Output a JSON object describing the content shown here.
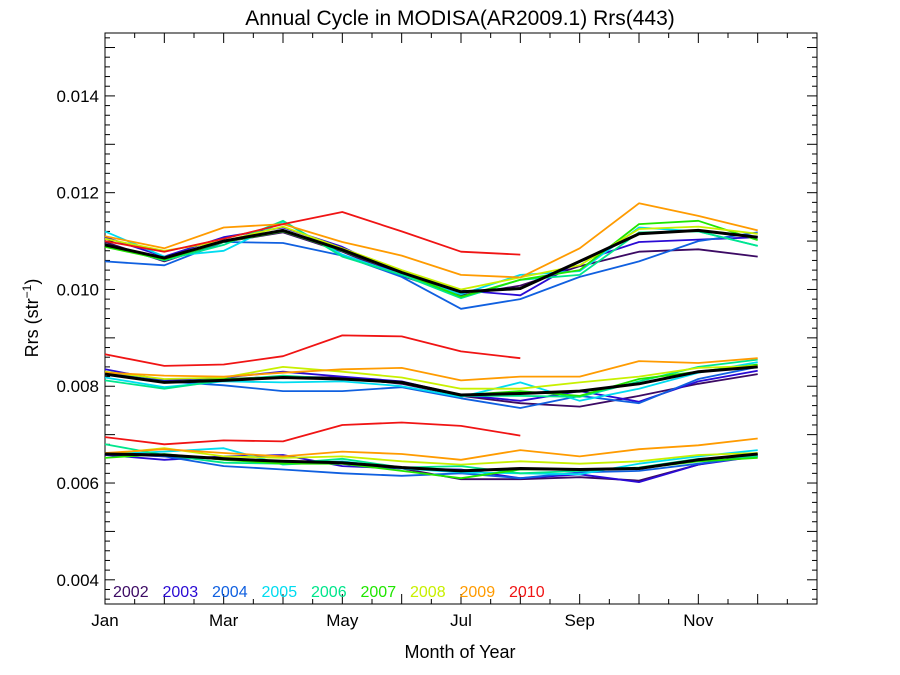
{
  "chart_data": {
    "type": "line",
    "title": "Annual Cycle in MODISA(AR2009.1) Rrs(443)",
    "xlabel": "Month of Year",
    "ylabel_main": "Rrs (str",
    "ylabel_sup": "−1",
    "ylabel_close": ")",
    "xlim": [
      1,
      13
    ],
    "ylim": [
      0.0035,
      0.0153
    ],
    "xticks": [
      {
        "value": 1,
        "label": "Jan"
      },
      {
        "value": 3,
        "label": "Mar"
      },
      {
        "value": 5,
        "label": "May"
      },
      {
        "value": 7,
        "label": "Jul"
      },
      {
        "value": 9,
        "label": "Sep"
      },
      {
        "value": 11,
        "label": "Nov"
      }
    ],
    "yticks": [
      {
        "value": 0.004,
        "label": "0.004"
      },
      {
        "value": 0.006,
        "label": "0.006"
      },
      {
        "value": 0.008,
        "label": "0.008"
      },
      {
        "value": 0.01,
        "label": "0.010"
      },
      {
        "value": 0.012,
        "label": "0.012"
      },
      {
        "value": 0.014,
        "label": "0.014"
      }
    ],
    "x": [
      1,
      2,
      3,
      4,
      5,
      6,
      7,
      8,
      9,
      10,
      11,
      12
    ],
    "legend_placement": "bottom-left",
    "series": [
      {
        "name": "2002",
        "color": "#3c0a64",
        "groups": [
          [
            0.01098,
            0.01058,
            0.01098,
            0.01118,
            0.01078,
            0.01028,
            0.00988,
            0.01008,
            0.01048,
            0.01078,
            0.01083,
            0.01068
          ],
          [
            0.00828,
            0.00808,
            0.00815,
            0.0082,
            0.00818,
            0.00805,
            0.0078,
            0.00765,
            0.00758,
            0.0078,
            0.00805,
            0.00825
          ],
          [
            0.0066,
            0.00655,
            0.0065,
            0.00645,
            0.0064,
            0.0063,
            0.00608,
            0.00608,
            0.00612,
            0.00605,
            0.00638,
            0.0066
          ]
        ]
      },
      {
        "name": "2003",
        "color": "#2a0ad4",
        "groups": [
          [
            0.01108,
            0.01068,
            0.01108,
            0.01128,
            0.01088,
            0.01028,
            0.00998,
            0.00988,
            0.01058,
            0.01098,
            0.01103,
            0.01108
          ],
          [
            0.00835,
            0.00812,
            0.00818,
            0.0083,
            0.0082,
            0.0081,
            0.00782,
            0.0077,
            0.0079,
            0.00768,
            0.0081,
            0.00832
          ],
          [
            0.00658,
            0.00648,
            0.00655,
            0.00658,
            0.00635,
            0.0063,
            0.00628,
            0.0061,
            0.00618,
            0.00602,
            0.00638,
            0.00655
          ]
        ]
      },
      {
        "name": "2004",
        "color": "#1060e0",
        "groups": [
          [
            0.01058,
            0.0105,
            0.01098,
            0.01096,
            0.0107,
            0.01026,
            0.0096,
            0.0098,
            0.01026,
            0.01058,
            0.011,
            0.01118
          ],
          [
            0.00828,
            0.0081,
            0.00802,
            0.0079,
            0.0079,
            0.00798,
            0.00775,
            0.00755,
            0.0078,
            0.00765,
            0.00815,
            0.0084
          ],
          [
            0.00662,
            0.00655,
            0.00635,
            0.00628,
            0.0062,
            0.00615,
            0.0062,
            0.0061,
            0.00622,
            0.00625,
            0.0064,
            0.00655
          ]
        ]
      },
      {
        "name": "2005",
        "color": "#00dcf0",
        "groups": [
          [
            0.0112,
            0.01068,
            0.0108,
            0.0114,
            0.01072,
            0.0103,
            0.0099,
            0.0103,
            0.01038,
            0.01128,
            0.0112,
            0.0109
          ],
          [
            0.00818,
            0.00798,
            0.0081,
            0.00808,
            0.0081,
            0.008,
            0.00778,
            0.00808,
            0.0077,
            0.00795,
            0.00828,
            0.0085
          ],
          [
            0.0066,
            0.00665,
            0.00672,
            0.00638,
            0.00645,
            0.0063,
            0.00622,
            0.0062,
            0.00618,
            0.0064,
            0.00655,
            0.00668
          ]
        ]
      },
      {
        "name": "2006",
        "color": "#00e68c",
        "groups": [
          [
            0.01092,
            0.0106,
            0.01092,
            0.01142,
            0.01068,
            0.0103,
            0.00982,
            0.0102,
            0.0103,
            0.01118,
            0.0112,
            0.0109
          ],
          [
            0.00812,
            0.00795,
            0.00812,
            0.00822,
            0.00815,
            0.00808,
            0.0078,
            0.0078,
            0.00778,
            0.0081,
            0.0084,
            0.00855
          ],
          [
            0.0068,
            0.00658,
            0.00642,
            0.0064,
            0.0065,
            0.00632,
            0.00635,
            0.0062,
            0.00625,
            0.00632,
            0.0065,
            0.00655
          ]
        ]
      },
      {
        "name": "2007",
        "color": "#20e600",
        "groups": [
          [
            0.01088,
            0.01062,
            0.01098,
            0.0112,
            0.0108,
            0.01035,
            0.00985,
            0.0102,
            0.0104,
            0.01135,
            0.01142,
            0.01102
          ],
          [
            0.00825,
            0.00808,
            0.00815,
            0.00818,
            0.00815,
            0.00808,
            0.00782,
            0.0079,
            0.0078,
            0.00815,
            0.0083,
            0.00845
          ],
          [
            0.00652,
            0.0066,
            0.00648,
            0.0064,
            0.0064,
            0.00625,
            0.0061,
            0.00628,
            0.00628,
            0.0063,
            0.00645,
            0.00652
          ]
        ]
      },
      {
        "name": "2008",
        "color": "#c8f000",
        "groups": [
          [
            0.01105,
            0.0108,
            0.011,
            0.0113,
            0.01085,
            0.0104,
            0.01,
            0.01025,
            0.0105,
            0.01125,
            0.0113,
            0.01115
          ],
          [
            0.0083,
            0.00815,
            0.00818,
            0.0084,
            0.0083,
            0.00818,
            0.00795,
            0.00795,
            0.00808,
            0.0082,
            0.00838,
            0.00842
          ],
          [
            0.0066,
            0.00672,
            0.00655,
            0.00652,
            0.00655,
            0.00645,
            0.00638,
            0.00645,
            0.0064,
            0.00645,
            0.00658,
            0.00662
          ]
        ]
      },
      {
        "name": "2009",
        "color": "#ff9b00",
        "groups": [
          [
            0.0111,
            0.01085,
            0.01128,
            0.01135,
            0.01098,
            0.0107,
            0.0103,
            0.01025,
            0.01085,
            0.01178,
            0.01152,
            0.01122
          ],
          [
            0.00828,
            0.00822,
            0.0082,
            0.00828,
            0.00835,
            0.00838,
            0.00812,
            0.0082,
            0.0082,
            0.00852,
            0.00848,
            0.00858
          ],
          [
            0.00662,
            0.0067,
            0.00662,
            0.00655,
            0.00665,
            0.0066,
            0.00648,
            0.00668,
            0.00655,
            0.0067,
            0.00678,
            0.00692
          ]
        ]
      },
      {
        "name": "2010",
        "color": "#f01414",
        "groups": [
          [
            0.011,
            0.01078,
            0.01105,
            0.01135,
            0.0116,
            0.0112,
            0.01078,
            0.01072,
            null,
            null,
            null,
            null
          ],
          [
            0.00866,
            0.00842,
            0.00845,
            0.00862,
            0.00905,
            0.00903,
            0.00872,
            0.00858,
            null,
            null,
            null,
            null
          ],
          [
            0.00695,
            0.0068,
            0.00688,
            0.00686,
            0.0072,
            0.00725,
            0.00718,
            0.00698,
            null,
            null,
            null,
            null
          ]
        ]
      },
      {
        "name": "",
        "color": "#000000",
        "is_mean": true,
        "groups": [
          [
            0.01092,
            0.01065,
            0.011,
            0.01122,
            0.01082,
            0.01035,
            0.00995,
            0.01002,
            0.01058,
            0.01115,
            0.01122,
            0.01108
          ],
          [
            0.00825,
            0.00808,
            0.00812,
            0.00818,
            0.00815,
            0.00808,
            0.00782,
            0.00785,
            0.0079,
            0.00805,
            0.0083,
            0.0084
          ],
          [
            0.0066,
            0.00658,
            0.0065,
            0.00645,
            0.00642,
            0.00632,
            0.00625,
            0.0063,
            0.00628,
            0.0063,
            0.00648,
            0.0066
          ]
        ]
      }
    ]
  }
}
